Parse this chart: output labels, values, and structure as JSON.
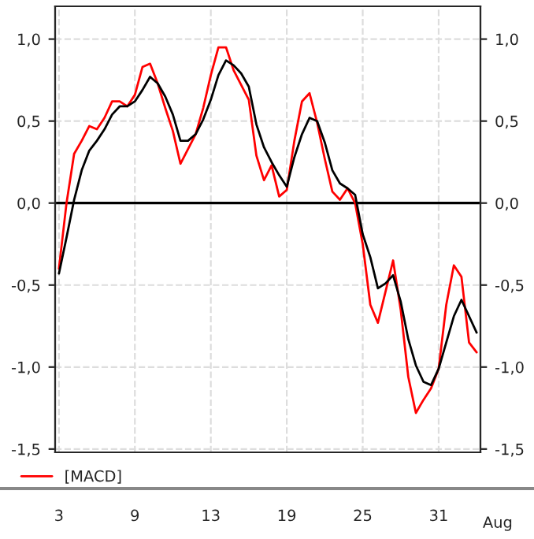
{
  "chart_data": {
    "type": "line",
    "categories": [
      "3",
      null,
      null,
      null,
      null,
      null,
      null,
      null,
      null,
      null,
      "9",
      null,
      null,
      null,
      null,
      null,
      null,
      null,
      null,
      null,
      "13",
      null,
      null,
      null,
      null,
      null,
      null,
      null,
      null,
      null,
      "19",
      null,
      null,
      null,
      null,
      null,
      null,
      null,
      null,
      null,
      "25",
      null,
      null,
      null,
      null,
      null,
      null,
      null,
      null,
      null,
      "31",
      null,
      null,
      null,
      null,
      null
    ],
    "ylim": [
      -1.52,
      1.2
    ],
    "yticks": [
      {
        "value": -1.5,
        "label": "-1,5"
      },
      {
        "value": -1.0,
        "label": "-1,0"
      },
      {
        "value": -0.5,
        "label": "-0,5"
      },
      {
        "value": 0,
        "label": "0,0"
      },
      {
        "value": 0.5,
        "label": "0,5"
      },
      {
        "value": 1.0,
        "label": "1,0"
      }
    ],
    "y2lim": [
      -1.52,
      1.2
    ],
    "y2ticks": [
      {
        "value": -1.5,
        "label": "-1,5"
      },
      {
        "value": -1.0,
        "label": "-1,0"
      },
      {
        "value": -0.5,
        "label": "-0,5"
      },
      {
        "value": 0,
        "label": "0,0"
      },
      {
        "value": 0.5,
        "label": "0,5"
      },
      {
        "value": 1.0,
        "label": "1,0"
      }
    ],
    "grid": true,
    "legend": "bottom",
    "marker": "none",
    "line_style": "solid",
    "ref_lines": [
      {
        "axis": "y",
        "value": 0,
        "color": "#000000"
      }
    ],
    "annotations": [
      "Aug"
    ],
    "series": [
      {
        "name": "[MACD]",
        "color": "#ff0000",
        "values": [
          -0.4,
          0.0,
          0.3,
          0.38,
          0.47,
          0.45,
          0.52,
          0.62,
          0.62,
          0.59,
          0.66,
          0.83,
          0.85,
          0.73,
          0.58,
          0.44,
          0.24,
          0.33,
          0.42,
          0.58,
          0.78,
          0.95,
          0.95,
          0.81,
          0.72,
          0.63,
          0.29,
          0.14,
          0.23,
          0.04,
          0.08,
          0.38,
          0.62,
          0.67,
          0.49,
          0.27,
          0.07,
          0.02,
          0.09,
          0.0,
          -0.25,
          -0.62,
          -0.73,
          -0.54,
          -0.35,
          -0.65,
          -1.06,
          -1.28,
          -1.2,
          -1.13,
          -1.01,
          -0.62,
          -0.38,
          -0.45,
          -0.85,
          -0.91
        ]
      },
      {
        "color": "#000000",
        "values": [
          -0.43,
          -0.21,
          0.02,
          0.2,
          0.32,
          0.38,
          0.45,
          0.54,
          0.59,
          0.59,
          0.62,
          0.69,
          0.77,
          0.73,
          0.65,
          0.54,
          0.38,
          0.38,
          0.42,
          0.51,
          0.63,
          0.78,
          0.87,
          0.84,
          0.79,
          0.71,
          0.48,
          0.34,
          0.25,
          0.17,
          0.1,
          0.28,
          0.42,
          0.52,
          0.5,
          0.37,
          0.2,
          0.12,
          0.09,
          0.05,
          -0.19,
          -0.33,
          -0.52,
          -0.49,
          -0.44,
          -0.6,
          -0.83,
          -0.99,
          -1.09,
          -1.11,
          -1.01,
          -0.85,
          -0.69,
          -0.59,
          -0.69,
          -0.79
        ]
      }
    ]
  }
}
